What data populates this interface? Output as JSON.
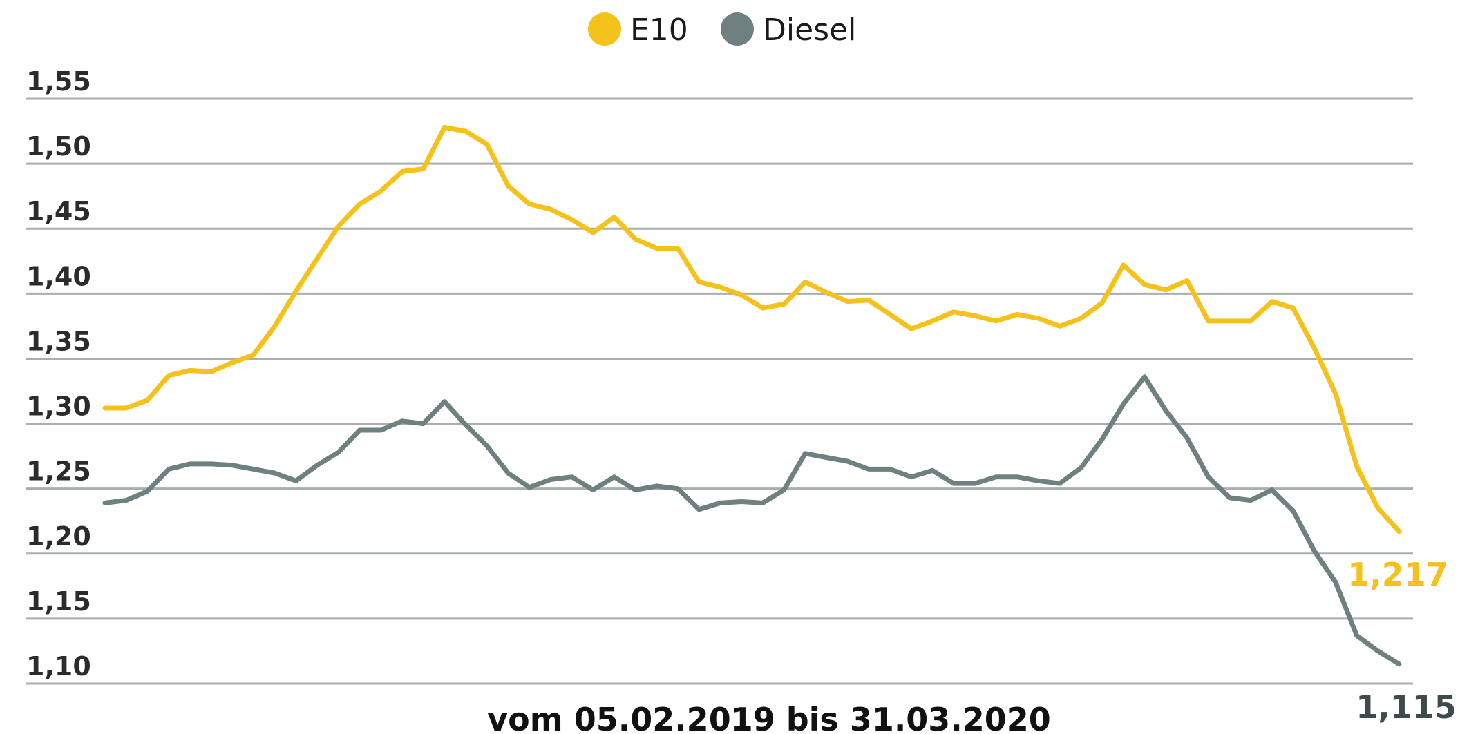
{
  "chart_data": {
    "type": "line",
    "title": "",
    "xlabel": "vom 05.02.2019 bis 31.03.2020",
    "ylabel": "",
    "ylim": [
      1.1,
      1.55
    ],
    "yticks": [
      "1,10",
      "1,15",
      "1,20",
      "1,25",
      "1,30",
      "1,35",
      "1,40",
      "1,45",
      "1,50",
      "1,55"
    ],
    "ytick_values": [
      1.1,
      1.15,
      1.2,
      1.25,
      1.3,
      1.35,
      1.4,
      1.45,
      1.5,
      1.55
    ],
    "grid": true,
    "legend_position": "top-center",
    "series": [
      {
        "name": "E10",
        "color": "#f5c21b",
        "end_label": "1,217",
        "values": [
          1.312,
          1.312,
          1.318,
          1.337,
          1.341,
          1.34,
          1.347,
          1.353,
          1.375,
          1.402,
          1.427,
          1.452,
          1.469,
          1.479,
          1.494,
          1.496,
          1.528,
          1.525,
          1.515,
          1.483,
          1.469,
          1.465,
          1.457,
          1.447,
          1.459,
          1.442,
          1.435,
          1.435,
          1.409,
          1.405,
          1.399,
          1.389,
          1.392,
          1.409,
          1.401,
          1.394,
          1.395,
          1.384,
          1.373,
          1.379,
          1.386,
          1.383,
          1.379,
          1.384,
          1.381,
          1.375,
          1.381,
          1.393,
          1.422,
          1.407,
          1.403,
          1.41,
          1.379,
          1.379,
          1.379,
          1.394,
          1.389,
          1.358,
          1.323,
          1.267,
          1.235,
          1.217
        ]
      },
      {
        "name": "Diesel",
        "color": "#6f8080",
        "end_label": "1,115",
        "values": [
          1.239,
          1.241,
          1.248,
          1.265,
          1.269,
          1.269,
          1.268,
          1.265,
          1.262,
          1.256,
          1.268,
          1.278,
          1.295,
          1.295,
          1.302,
          1.3,
          1.317,
          1.299,
          1.283,
          1.262,
          1.251,
          1.257,
          1.259,
          1.249,
          1.259,
          1.249,
          1.252,
          1.25,
          1.234,
          1.239,
          1.24,
          1.239,
          1.249,
          1.277,
          1.274,
          1.271,
          1.265,
          1.265,
          1.259,
          1.264,
          1.254,
          1.254,
          1.259,
          1.259,
          1.256,
          1.254,
          1.266,
          1.288,
          1.315,
          1.336,
          1.31,
          1.289,
          1.259,
          1.243,
          1.241,
          1.249,
          1.233,
          1.202,
          1.178,
          1.137,
          1.125,
          1.115
        ]
      }
    ]
  }
}
